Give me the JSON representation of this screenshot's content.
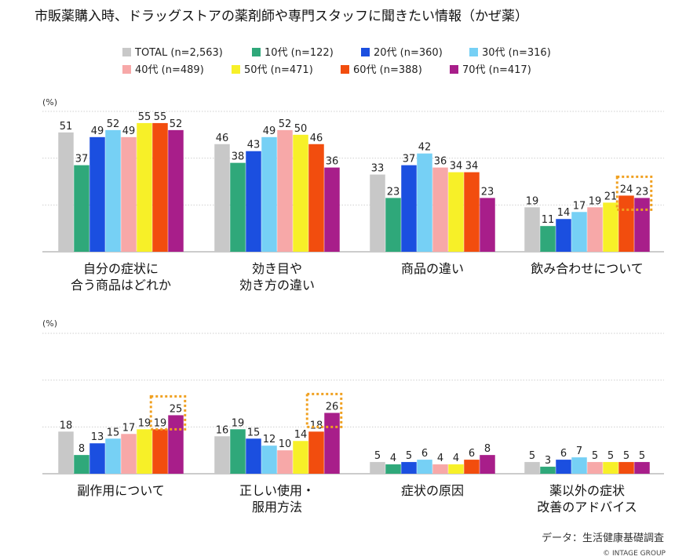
{
  "chart_data": {
    "type": "bar",
    "title": "市販薬購入時、ドラッグストアの薬剤師や専門スタッフに聞きたい情報（かぜ薬）",
    "unit_label": "(%)",
    "ylim": [
      0,
      60
    ],
    "series": [
      {
        "name": "TOTAL (n=2,563)",
        "color": "#c8c8c8"
      },
      {
        "name": "10代 (n=122)",
        "color": "#2fa87a"
      },
      {
        "name": "20代 (n=360)",
        "color": "#1b4fe0"
      },
      {
        "name": "30代 (n=316)",
        "color": "#76d0f5"
      },
      {
        "name": "40代 (n=489)",
        "color": "#f7a8a8"
      },
      {
        "name": "50代 (n=471)",
        "color": "#f7f028"
      },
      {
        "name": "60代 (n=388)",
        "color": "#f24d0e"
      },
      {
        "name": "70代 (n=417)",
        "color": "#a81e8a"
      }
    ],
    "panels": [
      {
        "groups": [
          {
            "label": [
              "自分の症状に",
              "合う商品はどれか"
            ],
            "values": [
              51,
              37,
              49,
              52,
              49,
              55,
              55,
              52
            ],
            "highlight": []
          },
          {
            "label": [
              "効き目や",
              "効き方の違い"
            ],
            "values": [
              46,
              38,
              43,
              49,
              52,
              50,
              46,
              36
            ],
            "highlight": []
          },
          {
            "label": [
              "商品の違い"
            ],
            "values": [
              33,
              23,
              37,
              42,
              36,
              34,
              34,
              23
            ],
            "highlight": []
          },
          {
            "label": [
              "飲み合わせについて"
            ],
            "values": [
              19,
              11,
              14,
              17,
              19,
              21,
              24,
              23
            ],
            "highlight": [
              6,
              7
            ]
          }
        ]
      },
      {
        "groups": [
          {
            "label": [
              "副作用について"
            ],
            "values": [
              18,
              8,
              13,
              15,
              17,
              19,
              19,
              25
            ],
            "highlight": [
              6,
              7
            ]
          },
          {
            "label": [
              "正しい使用・",
              "服用方法"
            ],
            "values": [
              16,
              19,
              15,
              12,
              10,
              14,
              18,
              26
            ],
            "highlight": [
              6,
              7
            ]
          },
          {
            "label": [
              "症状の原因"
            ],
            "values": [
              5,
              4,
              5,
              6,
              4,
              4,
              6,
              8
            ],
            "highlight": []
          },
          {
            "label": [
              "薬以外の症状",
              "改善のアドバイス"
            ],
            "values": [
              5,
              3,
              6,
              7,
              5,
              5,
              5,
              5
            ],
            "highlight": []
          }
        ]
      }
    ],
    "highlight_color": "#f0a020",
    "source": "データ：生活健康基礎調査",
    "copyright": "© INTAGE GROUP"
  }
}
